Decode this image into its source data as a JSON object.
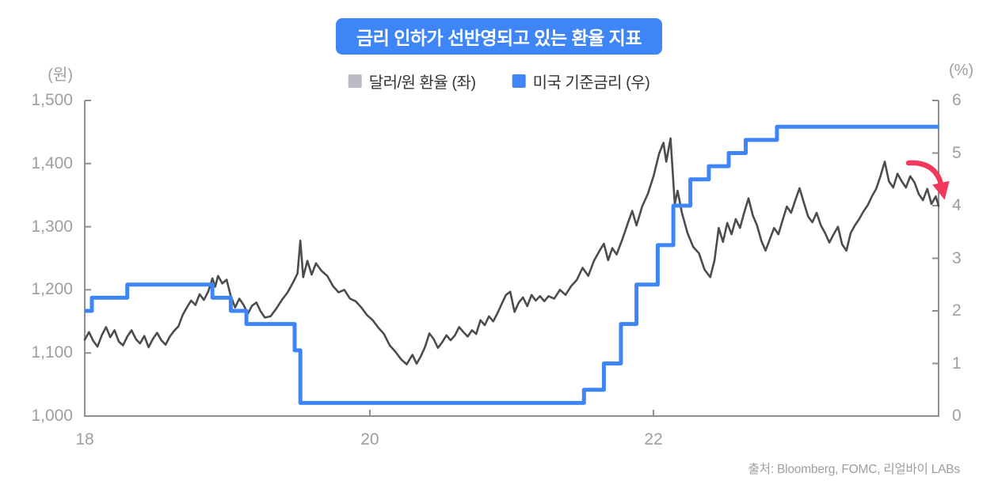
{
  "title": "금리 인하가 선반영되고 있는 환율 지표",
  "legend": [
    {
      "label": "달러/원 환율 (좌)",
      "color": "#b9bdc3"
    },
    {
      "label": "미국 기준금리 (우)",
      "color": "#3e86f7"
    }
  ],
  "source": "출처: Bloomberg, FOMC, 리얼바이 LABs",
  "colors": {
    "title_bg": "#3e86f7",
    "exchange_line": "#4a4c50",
    "policy_line": "#3e86f7",
    "axis": "#8f8f93",
    "labels": "#9e9ea2",
    "arrow": "#f2395c"
  },
  "chart_data": {
    "type": "line",
    "title": "금리 인하가 선반영되고 있는 환율 지표",
    "x_axis": {
      "range": [
        2018.69,
        2024.71
      ],
      "ticks": [
        {
          "x": 2018.69,
          "label": "18"
        },
        {
          "x": 2020.7,
          "label": "20"
        },
        {
          "x": 2022.7,
          "label": "22"
        }
      ]
    },
    "left_axis": {
      "unit": "(원)",
      "range": [
        1000,
        1500
      ],
      "tick_values": [
        1500,
        1400,
        1300,
        1200,
        1100,
        1000
      ],
      "tick_labels": [
        "1,500",
        "1,400",
        "1,300",
        "1,200",
        "1,100",
        "1,000"
      ]
    },
    "right_axis": {
      "unit": "(%)",
      "range": [
        0,
        6
      ],
      "tick_values": [
        6,
        5,
        4,
        3,
        2,
        1,
        0
      ],
      "tick_labels": [
        "6",
        "5",
        "4",
        "3",
        "2",
        "1",
        "0"
      ]
    },
    "series": [
      {
        "name": "달러/원 환율 (좌)",
        "axis": "left",
        "style": "line",
        "color": "#4a4c50",
        "width": 2.6,
        "points": [
          [
            2018.69,
            1121
          ],
          [
            2018.72,
            1133
          ],
          [
            2018.75,
            1119
          ],
          [
            2018.78,
            1110
          ],
          [
            2018.81,
            1128
          ],
          [
            2018.84,
            1141
          ],
          [
            2018.87,
            1125
          ],
          [
            2018.9,
            1136
          ],
          [
            2018.93,
            1118
          ],
          [
            2018.96,
            1112
          ],
          [
            2018.99,
            1126
          ],
          [
            2019.02,
            1136
          ],
          [
            2019.05,
            1122
          ],
          [
            2019.08,
            1115
          ],
          [
            2019.11,
            1127
          ],
          [
            2019.14,
            1109
          ],
          [
            2019.17,
            1122
          ],
          [
            2019.2,
            1132
          ],
          [
            2019.23,
            1120
          ],
          [
            2019.26,
            1113
          ],
          [
            2019.29,
            1126
          ],
          [
            2019.32,
            1135
          ],
          [
            2019.35,
            1142
          ],
          [
            2019.38,
            1160
          ],
          [
            2019.41,
            1172
          ],
          [
            2019.44,
            1183
          ],
          [
            2019.47,
            1176
          ],
          [
            2019.5,
            1193
          ],
          [
            2019.53,
            1184
          ],
          [
            2019.56,
            1197
          ],
          [
            2019.59,
            1218
          ],
          [
            2019.61,
            1205
          ],
          [
            2019.63,
            1222
          ],
          [
            2019.66,
            1210
          ],
          [
            2019.69,
            1216
          ],
          [
            2019.72,
            1190
          ],
          [
            2019.75,
            1172
          ],
          [
            2019.78,
            1186
          ],
          [
            2019.81,
            1176
          ],
          [
            2019.84,
            1162
          ],
          [
            2019.87,
            1175
          ],
          [
            2019.9,
            1180
          ],
          [
            2019.93,
            1166
          ],
          [
            2019.96,
            1156
          ],
          [
            2020.0,
            1158
          ],
          [
            2020.04,
            1170
          ],
          [
            2020.08,
            1184
          ],
          [
            2020.12,
            1196
          ],
          [
            2020.16,
            1212
          ],
          [
            2020.19,
            1226
          ],
          [
            2020.21,
            1278
          ],
          [
            2020.23,
            1220
          ],
          [
            2020.26,
            1246
          ],
          [
            2020.29,
            1224
          ],
          [
            2020.32,
            1242
          ],
          [
            2020.36,
            1230
          ],
          [
            2020.4,
            1222
          ],
          [
            2020.44,
            1206
          ],
          [
            2020.48,
            1196
          ],
          [
            2020.52,
            1200
          ],
          [
            2020.56,
            1186
          ],
          [
            2020.6,
            1182
          ],
          [
            2020.64,
            1172
          ],
          [
            2020.68,
            1160
          ],
          [
            2020.72,
            1152
          ],
          [
            2020.76,
            1140
          ],
          [
            2020.8,
            1130
          ],
          [
            2020.84,
            1112
          ],
          [
            2020.88,
            1102
          ],
          [
            2020.92,
            1090
          ],
          [
            2020.96,
            1082
          ],
          [
            2021.0,
            1097
          ],
          [
            2021.03,
            1083
          ],
          [
            2021.06,
            1095
          ],
          [
            2021.09,
            1110
          ],
          [
            2021.12,
            1131
          ],
          [
            2021.15,
            1122
          ],
          [
            2021.18,
            1108
          ],
          [
            2021.21,
            1117
          ],
          [
            2021.24,
            1128
          ],
          [
            2021.27,
            1120
          ],
          [
            2021.3,
            1128
          ],
          [
            2021.33,
            1141
          ],
          [
            2021.36,
            1133
          ],
          [
            2021.39,
            1126
          ],
          [
            2021.42,
            1136
          ],
          [
            2021.45,
            1130
          ],
          [
            2021.48,
            1152
          ],
          [
            2021.51,
            1144
          ],
          [
            2021.54,
            1158
          ],
          [
            2021.57,
            1150
          ],
          [
            2021.6,
            1163
          ],
          [
            2021.63,
            1178
          ],
          [
            2021.66,
            1192
          ],
          [
            2021.69,
            1197
          ],
          [
            2021.72,
            1165
          ],
          [
            2021.75,
            1180
          ],
          [
            2021.78,
            1188
          ],
          [
            2021.81,
            1174
          ],
          [
            2021.84,
            1192
          ],
          [
            2021.87,
            1183
          ],
          [
            2021.9,
            1190
          ],
          [
            2021.93,
            1182
          ],
          [
            2021.96,
            1190
          ],
          [
            2022.0,
            1186
          ],
          [
            2022.04,
            1200
          ],
          [
            2022.08,
            1192
          ],
          [
            2022.12,
            1206
          ],
          [
            2022.16,
            1216
          ],
          [
            2022.2,
            1235
          ],
          [
            2022.24,
            1222
          ],
          [
            2022.28,
            1246
          ],
          [
            2022.32,
            1262
          ],
          [
            2022.35,
            1273
          ],
          [
            2022.38,
            1247
          ],
          [
            2022.41,
            1266
          ],
          [
            2022.44,
            1256
          ],
          [
            2022.48,
            1280
          ],
          [
            2022.52,
            1306
          ],
          [
            2022.55,
            1325
          ],
          [
            2022.58,
            1302
          ],
          [
            2022.62,
            1332
          ],
          [
            2022.66,
            1352
          ],
          [
            2022.7,
            1380
          ],
          [
            2022.74,
            1416
          ],
          [
            2022.77,
            1433
          ],
          [
            2022.79,
            1403
          ],
          [
            2022.82,
            1440
          ],
          [
            2022.85,
            1336
          ],
          [
            2022.87,
            1357
          ],
          [
            2022.9,
            1322
          ],
          [
            2022.94,
            1290
          ],
          [
            2022.98,
            1268
          ],
          [
            2023.02,
            1258
          ],
          [
            2023.06,
            1232
          ],
          [
            2023.1,
            1220
          ],
          [
            2023.13,
            1247
          ],
          [
            2023.16,
            1298
          ],
          [
            2023.19,
            1276
          ],
          [
            2023.22,
            1306
          ],
          [
            2023.25,
            1288
          ],
          [
            2023.28,
            1312
          ],
          [
            2023.31,
            1298
          ],
          [
            2023.34,
            1323
          ],
          [
            2023.37,
            1345
          ],
          [
            2023.4,
            1318
          ],
          [
            2023.43,
            1302
          ],
          [
            2023.46,
            1278
          ],
          [
            2023.49,
            1262
          ],
          [
            2023.52,
            1280
          ],
          [
            2023.55,
            1298
          ],
          [
            2023.58,
            1288
          ],
          [
            2023.61,
            1310
          ],
          [
            2023.64,
            1332
          ],
          [
            2023.67,
            1322
          ],
          [
            2023.7,
            1342
          ],
          [
            2023.73,
            1361
          ],
          [
            2023.76,
            1338
          ],
          [
            2023.79,
            1316
          ],
          [
            2023.82,
            1307
          ],
          [
            2023.85,
            1322
          ],
          [
            2023.88,
            1302
          ],
          [
            2023.91,
            1290
          ],
          [
            2023.94,
            1275
          ],
          [
            2023.97,
            1288
          ],
          [
            2024.0,
            1300
          ],
          [
            2024.03,
            1272
          ],
          [
            2024.06,
            1262
          ],
          [
            2024.09,
            1290
          ],
          [
            2024.12,
            1302
          ],
          [
            2024.15,
            1312
          ],
          [
            2024.18,
            1324
          ],
          [
            2024.21,
            1334
          ],
          [
            2024.24,
            1348
          ],
          [
            2024.27,
            1360
          ],
          [
            2024.3,
            1380
          ],
          [
            2024.33,
            1403
          ],
          [
            2024.36,
            1372
          ],
          [
            2024.39,
            1362
          ],
          [
            2024.42,
            1384
          ],
          [
            2024.45,
            1372
          ],
          [
            2024.48,
            1362
          ],
          [
            2024.51,
            1380
          ],
          [
            2024.54,
            1370
          ],
          [
            2024.57,
            1352
          ],
          [
            2024.6,
            1342
          ],
          [
            2024.63,
            1360
          ],
          [
            2024.66,
            1336
          ],
          [
            2024.69,
            1348
          ],
          [
            2024.71,
            1333
          ]
        ]
      },
      {
        "name": "미국 기준금리 (우)",
        "axis": "right",
        "style": "step",
        "color": "#3e86f7",
        "width": 5,
        "points": [
          [
            2018.69,
            2.0
          ],
          [
            2018.74,
            2.25
          ],
          [
            2018.99,
            2.5
          ],
          [
            2019.59,
            2.25
          ],
          [
            2019.72,
            2.0
          ],
          [
            2019.83,
            1.75
          ],
          [
            2020.17,
            1.25
          ],
          [
            2020.21,
            0.25
          ],
          [
            2022.21,
            0.5
          ],
          [
            2022.35,
            1.0
          ],
          [
            2022.47,
            1.75
          ],
          [
            2022.58,
            2.5
          ],
          [
            2022.73,
            3.25
          ],
          [
            2022.84,
            4.0
          ],
          [
            2022.96,
            4.5
          ],
          [
            2023.09,
            4.75
          ],
          [
            2023.23,
            5.0
          ],
          [
            2023.35,
            5.25
          ],
          [
            2023.57,
            5.5
          ],
          [
            2024.71,
            5.5
          ]
        ]
      }
    ],
    "annotation": {
      "type": "rate-cut-arrow",
      "color": "#f2395c",
      "position": "right-edge near 4%"
    },
    "grid": false,
    "legend_position": "top-center"
  }
}
